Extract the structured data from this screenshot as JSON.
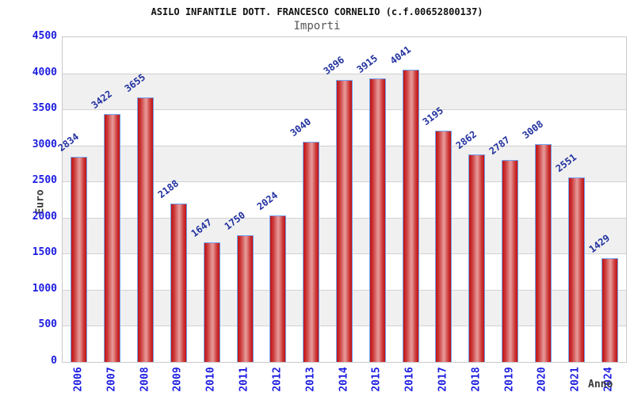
{
  "title": "ASILO INFANTILE DOTT. FRANCESCO CORNELIO (c.f.00652800137)",
  "subtitle": "Importi",
  "chart_data": {
    "type": "bar",
    "categories": [
      "2006",
      "2007",
      "2008",
      "2009",
      "2010",
      "2011",
      "2012",
      "2013",
      "2014",
      "2015",
      "2016",
      "2017",
      "2018",
      "2019",
      "2020",
      "2021",
      "2024"
    ],
    "values": [
      2834,
      3422,
      3655,
      2188,
      1647,
      1750,
      2024,
      3040,
      3896,
      3915,
      4041,
      3195,
      2862,
      2787,
      3008,
      2551,
      1429
    ],
    "xlabel": "Anno",
    "ylabel": "Euro",
    "ylim": [
      0,
      4500
    ],
    "ytick_step": 500,
    "grid": true,
    "legend": "none",
    "colors": {
      "bar_edge": "#c11111",
      "bar_center": "#e89a9a",
      "bar_border": "#6fa4f0",
      "tick_label": "#1d1de0",
      "value_label": "#20309e",
      "axis_title": "#3a3a3a",
      "band": "#f0f0f0",
      "gridline": "#d2d2d2",
      "title": "#111111",
      "subtitle": "#555555"
    }
  }
}
